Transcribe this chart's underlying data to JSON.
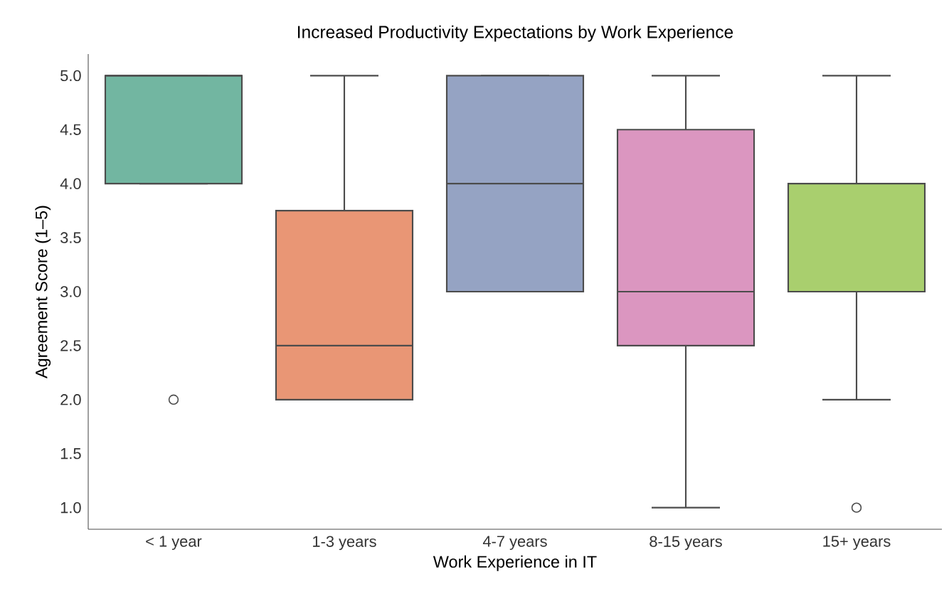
{
  "chart_data": {
    "type": "box",
    "title": "Increased Productivity Expectations by Work Experience",
    "xlabel": "Work Experience in IT",
    "ylabel": "Agreement Score (1–5)",
    "categories": [
      "< 1 year",
      "1-3 years",
      "4-7 years",
      "8-15 years",
      "15+ years"
    ],
    "colors": [
      "#72b6a1",
      "#e99675",
      "#95a3c3",
      "#db96c0",
      "#a9cf6e"
    ],
    "boxes": [
      {
        "low": 4,
        "q1": 4,
        "median": 5,
        "q3": 5,
        "high": 5,
        "outliers": [
          2
        ]
      },
      {
        "low": 2,
        "q1": 2,
        "median": 2.5,
        "q3": 3.75,
        "high": 5
      },
      {
        "low": 3,
        "q1": 3,
        "median": 4,
        "q3": 5,
        "high": 5
      },
      {
        "low": 1,
        "q1": 2.5,
        "median": 3,
        "q3": 4.5,
        "high": 5
      },
      {
        "low": 2,
        "q1": 3,
        "median": 3,
        "q3": 4,
        "high": 5,
        "outliers": [
          1
        ]
      }
    ],
    "ylim": [
      0.8,
      5.2
    ],
    "yticks": [
      {
        "value": 1,
        "label": "1.0"
      },
      {
        "value": 1.5,
        "label": "1.5"
      },
      {
        "value": 2,
        "label": "2.0"
      },
      {
        "value": 2.5,
        "label": "2.5"
      },
      {
        "value": 3,
        "label": "3.0"
      },
      {
        "value": 3.5,
        "label": "3.5"
      },
      {
        "value": 4,
        "label": "4.0"
      },
      {
        "value": 4.5,
        "label": "4.5"
      },
      {
        "value": 5,
        "label": "5.0"
      }
    ]
  }
}
